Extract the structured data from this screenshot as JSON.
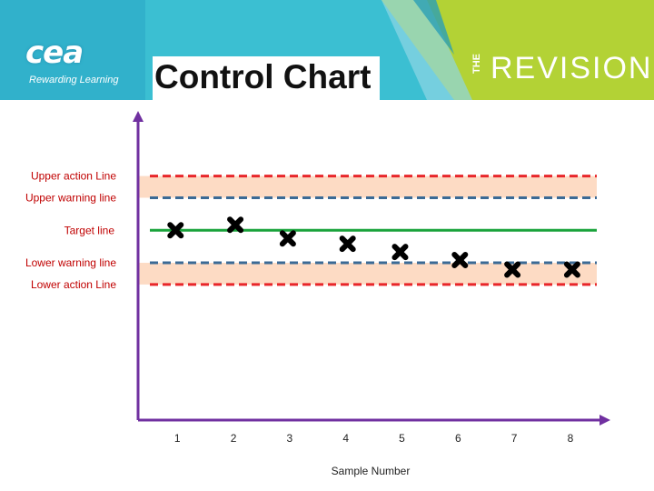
{
  "banner": {
    "logo_text": "cea",
    "logo_tagline": "Rewarding Learning",
    "title": "Control Chart",
    "brand_prefix": "THE",
    "brand_name": "REVISION"
  },
  "colors": {
    "banner_teal": "#3bbfd2",
    "banner_green": "#b3d235",
    "action_line": "#e8262a",
    "warning_line": "#3b6a95",
    "target_line": "#1aa33c",
    "zone_fill": "#fddbc4",
    "axis": "#7030a0",
    "marker": "#000000"
  },
  "chart_data": {
    "type": "scatter",
    "title": "Control Chart",
    "xlabel": "Sample Number",
    "ylabel": "",
    "x_ticks": [
      "1",
      "2",
      "3",
      "4",
      "5",
      "6",
      "7",
      "8"
    ],
    "xlim": [
      0.3,
      8.6
    ],
    "ylim": [
      -7,
      4.2
    ],
    "series": [
      {
        "name": "samples",
        "x": [
          1,
          2,
          3,
          4,
          5,
          6,
          7,
          8
        ],
        "y": [
          0,
          0.2,
          -0.3,
          -0.5,
          -0.8,
          -1.1,
          -1.45,
          -1.45
        ]
      }
    ],
    "reference_lines": [
      {
        "name": "Upper action Line",
        "y": 2.0,
        "style": "dashed",
        "color_key": "action_line"
      },
      {
        "name": "Upper warning line",
        "y": 1.2,
        "style": "dashed",
        "color_key": "warning_line"
      },
      {
        "name": "Target line",
        "y": 0,
        "style": "solid",
        "color_key": "target_line"
      },
      {
        "name": "Lower warning line",
        "y": -1.2,
        "style": "dashed",
        "color_key": "warning_line"
      },
      {
        "name": "Lower action Line",
        "y": -2.0,
        "style": "dashed",
        "color_key": "action_line"
      }
    ],
    "labels": {
      "upper_action": "Upper action Line",
      "upper_warning": "Upper warning line",
      "target": "Target line",
      "lower_warning": "Lower warning line",
      "lower_action": "Lower action Line"
    }
  }
}
